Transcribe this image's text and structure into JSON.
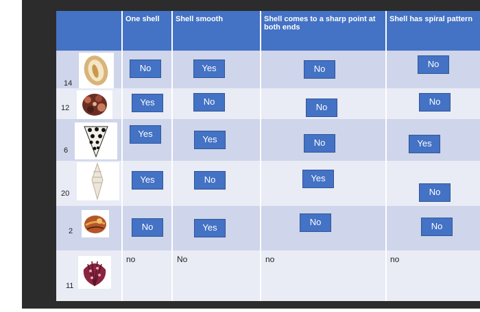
{
  "headers": {
    "one_shell": "One shell",
    "shell_smooth": "Shell smooth",
    "sharp_point": "Shell comes to a  sharp point at both ends",
    "spiral_pattern": "Shell has spiral pattern"
  },
  "rows": [
    {
      "number": "14",
      "image": "cone-shell-icon",
      "one_shell": "No",
      "smooth": "Yes",
      "sharp": "No",
      "spiral": "No"
    },
    {
      "number": "12",
      "image": "murex-shell-icon",
      "one_shell": "Yes",
      "smooth": "No",
      "sharp": "No",
      "spiral": "No"
    },
    {
      "number": "6",
      "image": "spotted-cone-shell-icon",
      "one_shell": "Yes",
      "smooth": "Yes",
      "sharp": "No",
      "spiral": "Yes"
    },
    {
      "number": "20",
      "image": "spindle-shell-icon",
      "one_shell": "Yes",
      "smooth": "No",
      "sharp": "Yes",
      "spiral": "No"
    },
    {
      "number": "2",
      "image": "snail-shell-icon",
      "one_shell": "No",
      "smooth": "Yes",
      "sharp": "No",
      "spiral": "No"
    },
    {
      "number": "11",
      "image": "scallop-shell-icon",
      "one_shell": "no",
      "smooth": "No",
      "sharp": "no",
      "spiral": "no"
    }
  ],
  "colors": {
    "header": "#4472c4",
    "row_dark": "#cfd5ea",
    "row_light": "#e9ebf5",
    "button": "#4472c4"
  }
}
